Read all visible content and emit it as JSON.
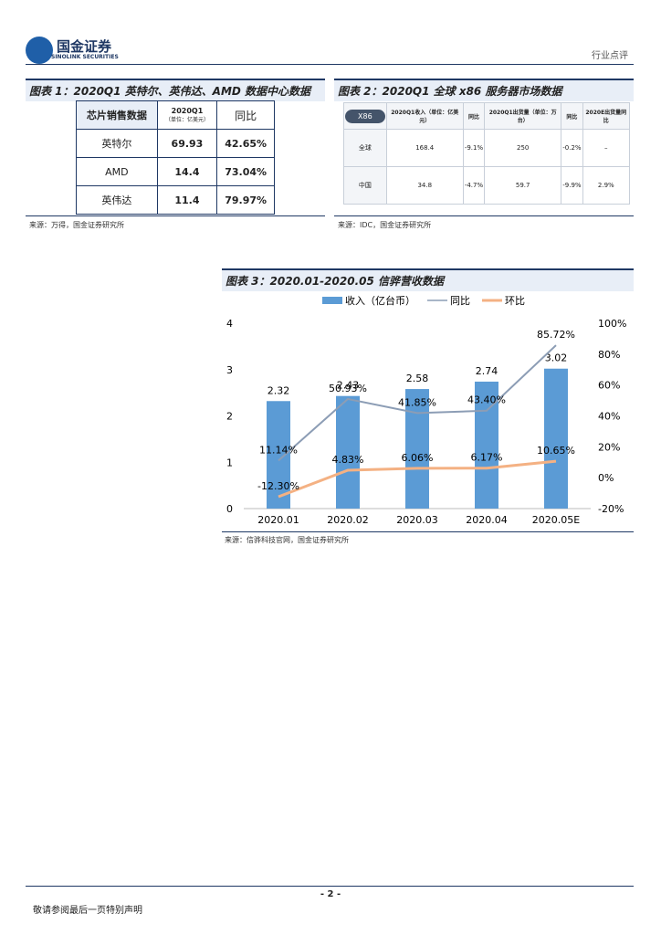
{
  "header": {
    "logo_cn": "国金证券",
    "logo_en": "SINOLINK SECURITIES",
    "report_type": "行业点评"
  },
  "figure1": {
    "title": "图表 1：2020Q1 英特尔、英伟达、AMD 数据中心数据",
    "table": {
      "header": [
        "芯片销售数据",
        "2020Q1",
        "（单位：亿美元）",
        "同比"
      ],
      "rows": [
        [
          "英特尔",
          "69.93",
          "42.65%"
        ],
        [
          "AMD",
          "14.4",
          "73.04%"
        ],
        [
          "英伟达",
          "11.4",
          "79.97%"
        ]
      ]
    },
    "source": "来源：万得，国金证券研究所"
  },
  "figure2": {
    "title": "图表 2：2020Q1 全球 x86 服务器市场数据",
    "table": {
      "header": [
        "X86",
        "2020Q1收入（单位：亿美元）",
        "同比",
        "2020Q1出货量（单位：万台）",
        "同比",
        "2020E出货量同比"
      ],
      "rows": [
        [
          "全球",
          "168.4",
          "-9.1%",
          "250",
          "-0.2%",
          "–"
        ],
        [
          "中国",
          "34.8",
          "-4.7%",
          "59.7",
          "-9.9%",
          "2.9%"
        ]
      ]
    },
    "source": "来源：IDC，国金证券研究所"
  },
  "chart_data": {
    "type": "bar_line",
    "title": "图表 3：2020.01-2020.05 信骅营收数据",
    "categories": [
      "2020.01",
      "2020.02",
      "2020.03",
      "2020.04",
      "2020.05E"
    ],
    "series": [
      {
        "name": "收入（亿台币）",
        "type": "bar",
        "color": "#5b9bd5",
        "values": [
          2.32,
          2.43,
          2.58,
          2.74,
          3.02
        ]
      },
      {
        "name": "同比",
        "type": "line",
        "axis": "y2",
        "color": "#8c9db5",
        "values": [
          11.14,
          50.93,
          41.85,
          43.4,
          85.72
        ],
        "value_labels": [
          "11.14%",
          "50.93%",
          "41.85%",
          "43.40%",
          "85.72%"
        ]
      },
      {
        "name": "环比",
        "type": "line",
        "axis": "y2",
        "color": "#f4b183",
        "values": [
          -12.3,
          4.83,
          6.06,
          6.17,
          10.65
        ],
        "value_labels": [
          "-12.30%",
          "4.83%",
          "6.06%",
          "6.17%",
          "10.65%"
        ]
      }
    ],
    "ylim": [
      0,
      4
    ],
    "yticks": [
      0,
      1,
      2,
      3,
      4
    ],
    "y2lim": [
      -20,
      100
    ],
    "y2ticks": [
      {
        "value": -20,
        "label": "-20%"
      },
      {
        "value": 0,
        "label": "0%"
      },
      {
        "value": 20,
        "label": "20%"
      },
      {
        "value": 40,
        "label": "40%"
      },
      {
        "value": 60,
        "label": "60%"
      },
      {
        "value": 80,
        "label": "80%"
      },
      {
        "value": 100,
        "label": "100%"
      }
    ],
    "source": "来源：信骅科技官网，国金证券研究所"
  },
  "footer": {
    "page": "- 2 -",
    "disclaimer": "敬请参阅最后一页特别声明"
  }
}
